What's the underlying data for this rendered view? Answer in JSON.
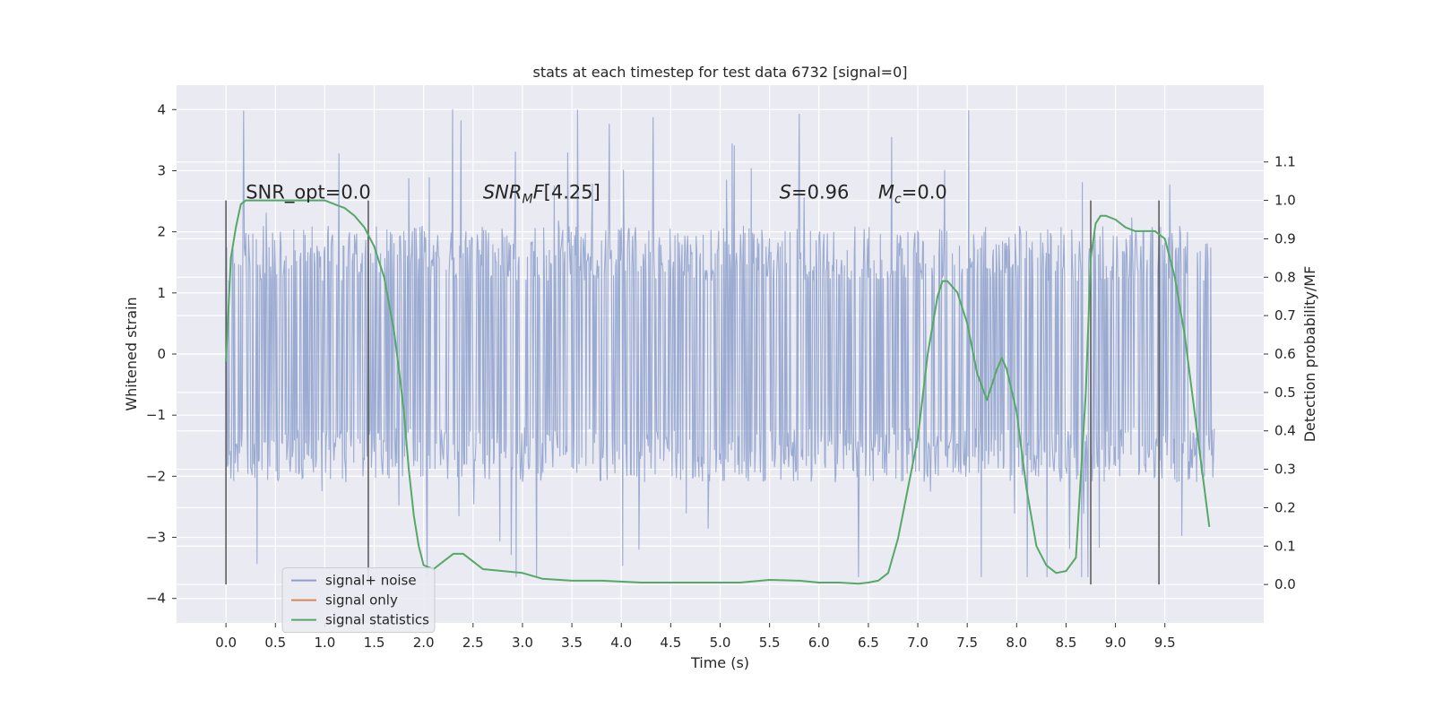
{
  "chart_data": {
    "type": "line",
    "title": "stats at each timestep for test data 6732 [signal=0]",
    "xlabel": "Time (s)",
    "ylabel": "Whitened strain",
    "y2label": "Detection probability/MF",
    "xlim": [
      -0.5,
      10.5
    ],
    "ylim": [
      -4.4,
      4.4
    ],
    "y2lim": [
      -0.1,
      1.3
    ],
    "xticks": [
      0.0,
      0.5,
      1.0,
      1.5,
      2.0,
      2.5,
      3.0,
      3.5,
      4.0,
      4.5,
      5.0,
      5.5,
      6.0,
      6.5,
      7.0,
      7.5,
      8.0,
      8.5,
      9.0,
      9.5
    ],
    "xtick_labels": [
      "0.0",
      "0.5",
      "1.0",
      "1.5",
      "2.0",
      "2.5",
      "3.0",
      "3.5",
      "4.0",
      "4.5",
      "5.0",
      "5.5",
      "6.0",
      "6.5",
      "7.0",
      "7.5",
      "8.0",
      "8.5",
      "9.0",
      "9.5"
    ],
    "yticks": [
      -4,
      -3,
      -2,
      -1,
      0,
      1,
      2,
      3,
      4
    ],
    "ytick_labels": [
      "−4",
      "−3",
      "−2",
      "−1",
      "0",
      "1",
      "2",
      "3",
      "4"
    ],
    "y2ticks": [
      0.0,
      0.1,
      0.2,
      0.3,
      0.4,
      0.5,
      0.6,
      0.7,
      0.8,
      0.9,
      1.0,
      1.1
    ],
    "y2tick_labels": [
      "0.0",
      "0.1",
      "0.2",
      "0.3",
      "0.4",
      "0.5",
      "0.6",
      "0.7",
      "0.8",
      "0.9",
      "1.0",
      "1.1"
    ],
    "grid": true,
    "legend_position": "lower-left",
    "legend": [
      "signal+ noise",
      "signal only",
      "signal statistics"
    ],
    "colors": {
      "noise": "#8c9fcb",
      "signal_only": "#dd8452",
      "statistics": "#55a868",
      "background": "#eaeaf2",
      "vlines": "#555555"
    },
    "series": [
      {
        "name": "signal+ noise",
        "kind": "noise-band",
        "x_range": [
          0.0,
          10.0
        ],
        "typical_amplitude": 2.0,
        "peak_max": 4.05,
        "peak_min": -3.65
      },
      {
        "name": "signal only",
        "values": []
      },
      {
        "name": "signal statistics",
        "axis": "y2",
        "x": [
          0.0,
          0.05,
          0.1,
          0.15,
          0.2,
          0.3,
          0.5,
          0.8,
          1.0,
          1.1,
          1.2,
          1.3,
          1.4,
          1.5,
          1.6,
          1.7,
          1.75,
          1.8,
          1.85,
          1.9,
          1.95,
          2.0,
          2.1,
          2.2,
          2.3,
          2.4,
          2.5,
          2.6,
          2.8,
          3.0,
          3.2,
          3.5,
          3.8,
          4.2,
          4.6,
          5.0,
          5.2,
          5.5,
          5.8,
          6.0,
          6.2,
          6.4,
          6.5,
          6.6,
          6.7,
          6.8,
          6.9,
          7.0,
          7.1,
          7.2,
          7.25,
          7.3,
          7.4,
          7.5,
          7.6,
          7.7,
          7.8,
          7.85,
          7.9,
          8.0,
          8.1,
          8.2,
          8.3,
          8.4,
          8.5,
          8.6,
          8.7,
          8.75,
          8.8,
          8.85,
          8.9,
          9.0,
          9.1,
          9.2,
          9.3,
          9.4,
          9.5,
          9.6,
          9.7,
          9.8,
          9.9,
          9.95
        ],
        "values": [
          0.58,
          0.85,
          0.93,
          0.99,
          1.0,
          1.0,
          1.0,
          1.0,
          1.0,
          0.99,
          0.98,
          0.96,
          0.93,
          0.88,
          0.8,
          0.66,
          0.56,
          0.45,
          0.3,
          0.18,
          0.1,
          0.05,
          0.04,
          0.06,
          0.08,
          0.08,
          0.06,
          0.04,
          0.035,
          0.03,
          0.015,
          0.01,
          0.01,
          0.005,
          0.005,
          0.005,
          0.005,
          0.012,
          0.01,
          0.005,
          0.005,
          0.002,
          0.005,
          0.01,
          0.03,
          0.12,
          0.25,
          0.38,
          0.6,
          0.75,
          0.79,
          0.79,
          0.76,
          0.68,
          0.55,
          0.48,
          0.56,
          0.59,
          0.56,
          0.45,
          0.25,
          0.1,
          0.05,
          0.03,
          0.035,
          0.07,
          0.5,
          0.85,
          0.94,
          0.96,
          0.96,
          0.95,
          0.93,
          0.92,
          0.92,
          0.92,
          0.9,
          0.8,
          0.65,
          0.45,
          0.25,
          0.15
        ]
      }
    ],
    "annotations": {
      "snr_opt": "SNR_opt=0.0",
      "snr_mf": "[4.25]",
      "s_value": "=0.96",
      "mc_value": "=0.0"
    },
    "vertical_lines_x": [
      0.0,
      1.44,
      8.75,
      9.44
    ]
  }
}
